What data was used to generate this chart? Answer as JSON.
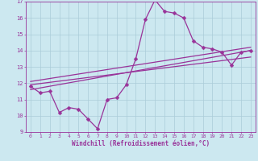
{
  "xlabel": "Windchill (Refroidissement éolien,°C)",
  "background_color": "#cce8f0",
  "grid_color": "#aaccd8",
  "line_color": "#993399",
  "xlim": [
    -0.5,
    23.5
  ],
  "ylim": [
    9,
    17
  ],
  "xticks": [
    0,
    1,
    2,
    3,
    4,
    5,
    6,
    7,
    8,
    9,
    10,
    11,
    12,
    13,
    14,
    15,
    16,
    17,
    18,
    19,
    20,
    21,
    22,
    23
  ],
  "yticks": [
    9,
    10,
    11,
    12,
    13,
    14,
    15,
    16,
    17
  ],
  "series1_x": [
    0,
    1,
    2,
    3,
    4,
    5,
    6,
    7,
    8,
    9,
    10,
    11,
    12,
    13,
    14,
    15,
    16,
    17,
    18,
    19,
    20,
    21,
    22,
    23
  ],
  "series1_y": [
    11.8,
    11.4,
    11.5,
    10.2,
    10.5,
    10.4,
    9.8,
    9.2,
    11.0,
    11.1,
    11.9,
    13.5,
    15.9,
    17.1,
    16.4,
    16.3,
    16.0,
    14.6,
    14.2,
    14.1,
    13.9,
    13.1,
    13.9,
    14.0
  ],
  "series2_x": [
    0,
    23
  ],
  "series2_y": [
    11.6,
    14.0
  ],
  "series3_x": [
    0,
    23
  ],
  "series3_y": [
    11.9,
    13.6
  ],
  "series4_x": [
    0,
    23
  ],
  "series4_y": [
    12.1,
    14.2
  ],
  "markersize": 2.5,
  "linewidth": 0.9,
  "tick_fontsize": 4.5,
  "label_fontsize": 5.5
}
